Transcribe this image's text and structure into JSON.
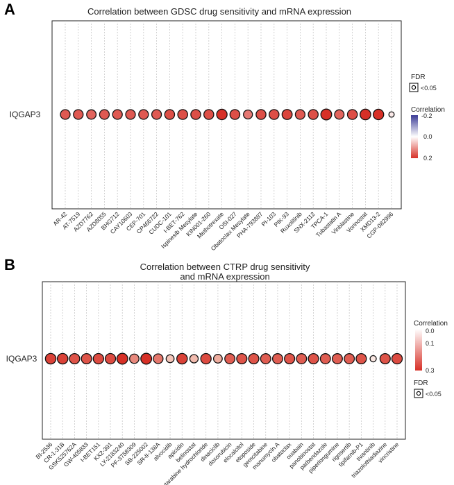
{
  "chart_data": [
    {
      "panel": "A",
      "type": "scatter",
      "title": "Correlation between GDSC drug sensitivity and mRNA expression",
      "gene": "IQGAP3",
      "categories": [
        "AR-42",
        "AT-7519",
        "AZD7762",
        "AZD8055",
        "BHG712",
        "CAY10603",
        "CEP-701",
        "CP466722",
        "CUDC-101",
        "I-BET-762",
        "Ispinesib Mesylate",
        "KIN001-260",
        "Methotrexate",
        "OSI-027",
        "Obatoclax Mesylate",
        "PHA-793887",
        "PI-103",
        "PIK-93",
        "Ruxolitinib",
        "SNX-2112",
        "TPCA-1",
        "Tubastatin A",
        "Vinblastine",
        "Vorinostat",
        "XMD13-2",
        "CGP-082996"
      ],
      "correlation": [
        0.16,
        0.16,
        0.15,
        0.16,
        0.16,
        0.16,
        0.16,
        0.16,
        0.17,
        0.17,
        0.17,
        0.17,
        0.2,
        0.17,
        0.13,
        0.17,
        0.17,
        0.18,
        0.16,
        0.17,
        0.22,
        0.15,
        0.17,
        0.21,
        0.2,
        0.02
      ],
      "fdr_significant": [
        true,
        true,
        true,
        true,
        true,
        true,
        true,
        true,
        true,
        true,
        true,
        true,
        true,
        true,
        true,
        true,
        true,
        true,
        true,
        true,
        true,
        true,
        true,
        true,
        true,
        true
      ],
      "legend": {
        "fdr_title": "FDR",
        "fdr_label": "<0.05",
        "color_title": "Correlation",
        "color_ticks": [
          "-0.2",
          "0.0",
          "0.2"
        ],
        "color_range": [
          -0.2,
          0.2
        ],
        "colors": [
          "#3b3b96",
          "#ffffff",
          "#d73027"
        ]
      }
    },
    {
      "panel": "B",
      "type": "scatter",
      "title_lines": [
        "Correlation between CTRP drug sensitivity",
        "and mRNA expression"
      ],
      "gene": "IQGAP3",
      "categories": [
        "BI-2536",
        "CR-1-31B",
        "GSK525762A",
        "GW-405833",
        "I-BET151",
        "KX2-391",
        "LY-2183240",
        "PF-3758309",
        "SB-225002",
        "SR-II-138A",
        "alvocidib",
        "apicidin",
        "belinostat",
        "cytarabine hydrochloride",
        "dinaciclib",
        "doxorubicin",
        "elocalcitol",
        "etoposide",
        "gemcitabine",
        "manumycin A",
        "obatoclax",
        "ouabain",
        "panobinostat",
        "parbendazole",
        "piperlongumine",
        "rigosertib",
        "tipifarnib-P1",
        "tivantinib",
        "triazolothiadiazine",
        "vincristine"
      ],
      "correlation": [
        0.28,
        0.28,
        0.26,
        0.26,
        0.27,
        0.27,
        0.3,
        0.2,
        0.3,
        0.22,
        0.12,
        0.28,
        0.14,
        0.27,
        0.16,
        0.25,
        0.26,
        0.26,
        0.25,
        0.25,
        0.26,
        0.25,
        0.26,
        0.25,
        0.25,
        0.25,
        0.26,
        0.05,
        0.26,
        0.27
      ],
      "fdr_significant": [
        true,
        true,
        true,
        true,
        true,
        true,
        true,
        true,
        true,
        true,
        true,
        true,
        true,
        true,
        true,
        true,
        true,
        true,
        true,
        true,
        true,
        true,
        true,
        true,
        true,
        true,
        true,
        true,
        true,
        true
      ],
      "legend": {
        "fdr_title": "FDR",
        "fdr_label": "<0.05",
        "color_title": "Correlation",
        "color_ticks": [
          "0.0",
          "0.1",
          "0.3"
        ],
        "color_range": [
          0.0,
          0.3
        ],
        "colors": [
          "#ffffff",
          "#f0b6a8",
          "#d73027"
        ]
      }
    }
  ]
}
